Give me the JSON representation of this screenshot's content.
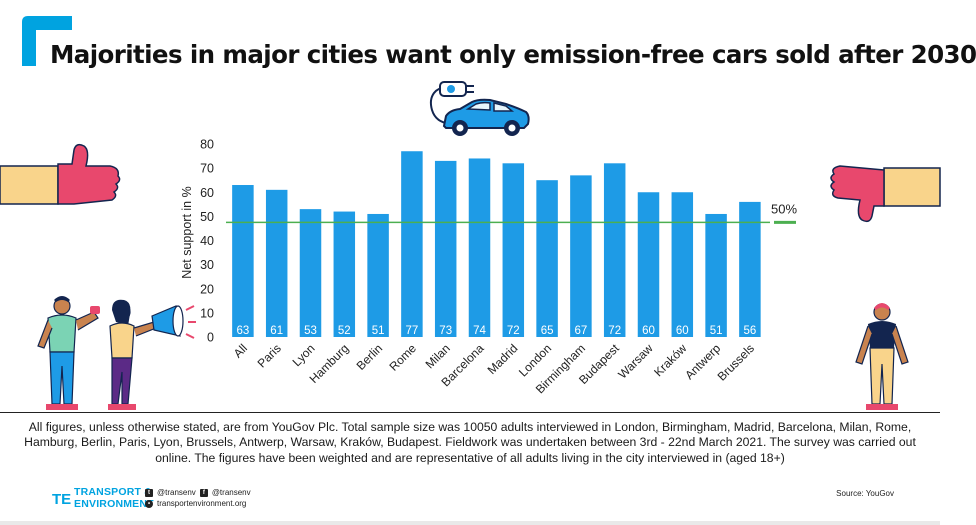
{
  "title": "Majorities in major cities want only emission-free cars sold after 2030",
  "chart_data": {
    "type": "bar",
    "categories": [
      "All",
      "Paris",
      "Lyon",
      "Hamburg",
      "Berlin",
      "Rome",
      "Milan",
      "Barcelona",
      "Madrid",
      "London",
      "Birmingham",
      "Budapest",
      "Warsaw",
      "Kraków",
      "Antwerp",
      "Brussels"
    ],
    "values": [
      63,
      61,
      53,
      52,
      51,
      77,
      73,
      74,
      72,
      65,
      67,
      72,
      60,
      60,
      51,
      56
    ],
    "ylabel": "Net support in %",
    "ylim": [
      0,
      80
    ],
    "yticks": [
      0,
      10,
      20,
      30,
      40,
      50,
      60,
      70,
      80
    ],
    "reference_value": 50,
    "reference_label": "50%",
    "bar_color": "#1e9be6",
    "reference_color": "#4caf50"
  },
  "footnote": "All figures, unless otherwise stated, are from YouGov Plc. Total sample size was 10050 adults interviewed in London, Birmingham, Madrid, Barcelona, Milan, Rome, Hamburg, Berlin, Paris, Lyon, Brussels, Antwerp, Warsaw, Kraków, Budapest. Fieldwork was undertaken between 3rd - 22nd March 2021. The survey was carried out online. The figures have been weighted and are representative of all adults living in the city interviewed in (aged 18+)",
  "footer": {
    "logo_line1": "TRANSPORT &",
    "logo_line2": "ENVIRONMENT",
    "logo_mark": "TE",
    "twitter": "@transenv",
    "facebook": "@transenv",
    "website": "transportenvironment.org",
    "source": "Source: YouGov"
  },
  "colors": {
    "accent": "#00a3e0",
    "thumb": "#e8486d",
    "sleeve": "#f9d48b"
  }
}
